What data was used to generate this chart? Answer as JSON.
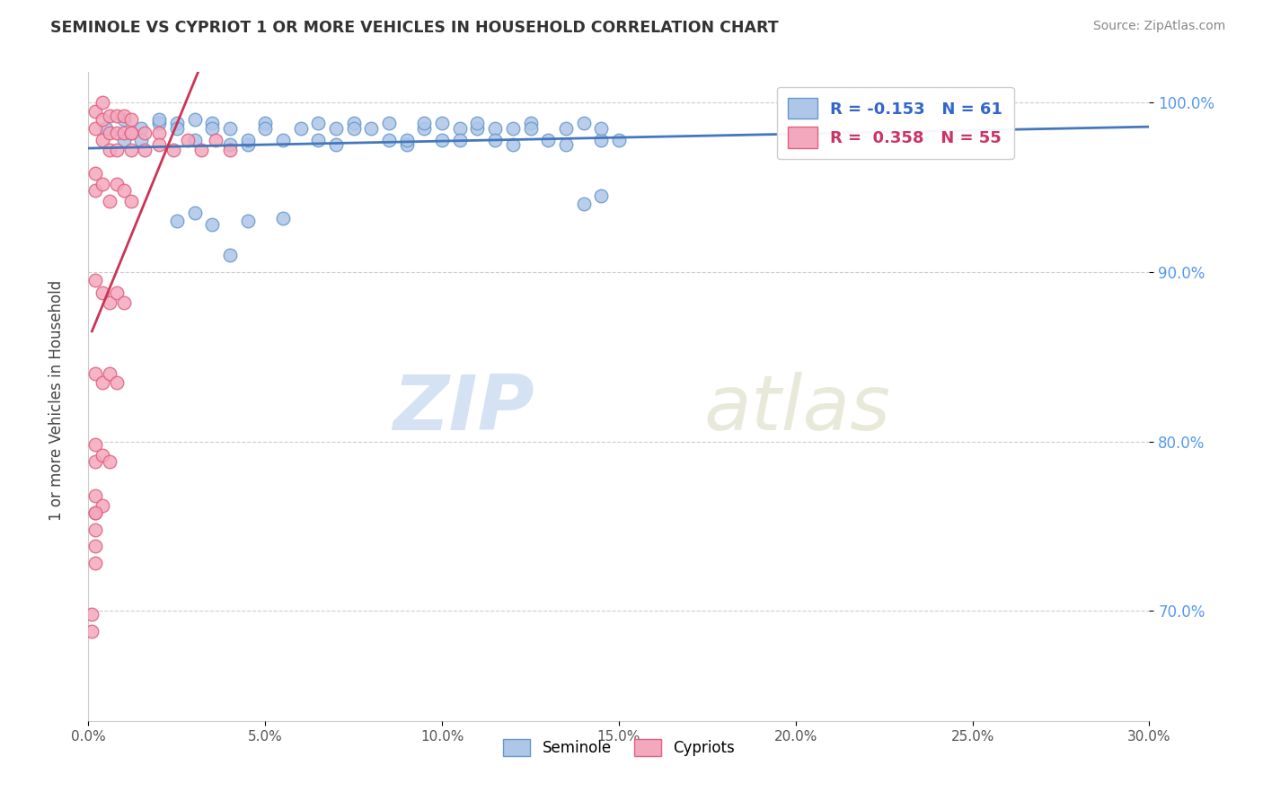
{
  "title": "SEMINOLE VS CYPRIOT 1 OR MORE VEHICLES IN HOUSEHOLD CORRELATION CHART",
  "source": "Source: ZipAtlas.com",
  "ylabel": "1 or more Vehicles in Household",
  "xlim": [
    0.0,
    0.3
  ],
  "ylim": [
    0.635,
    1.018
  ],
  "ytick_labels": [
    "70.0%",
    "80.0%",
    "90.0%",
    "100.0%"
  ],
  "ytick_values": [
    0.7,
    0.8,
    0.9,
    1.0
  ],
  "xtick_labels": [
    "0.0%",
    "5.0%",
    "10.0%",
    "15.0%",
    "20.0%",
    "25.0%",
    "30.0%"
  ],
  "xtick_values": [
    0.0,
    0.05,
    0.1,
    0.15,
    0.2,
    0.25,
    0.3
  ],
  "legend_r_seminole": "-0.153",
  "legend_n_seminole": "61",
  "legend_r_cypriot": "0.358",
  "legend_n_cypriot": "55",
  "seminole_color": "#aec6e8",
  "cypriot_color": "#f4a8be",
  "seminole_edge": "#6699cc",
  "cypriot_edge": "#e06080",
  "trend_seminole_color": "#4477bb",
  "trend_cypriot_color": "#cc3355",
  "watermark_zip": "ZIP",
  "watermark_atlas": "atlas",
  "seminole_x": [
    0.005,
    0.01,
    0.01,
    0.015,
    0.015,
    0.02,
    0.02,
    0.025,
    0.025,
    0.03,
    0.03,
    0.035,
    0.035,
    0.04,
    0.04,
    0.045,
    0.045,
    0.05,
    0.05,
    0.055,
    0.06,
    0.065,
    0.065,
    0.07,
    0.07,
    0.075,
    0.08,
    0.085,
    0.085,
    0.09,
    0.09,
    0.095,
    0.095,
    0.1,
    0.1,
    0.105,
    0.105,
    0.11,
    0.11,
    0.115,
    0.115,
    0.12,
    0.12,
    0.125,
    0.125,
    0.13,
    0.135,
    0.135,
    0.14,
    0.145,
    0.145,
    0.15,
    0.025,
    0.03,
    0.035,
    0.04,
    0.045,
    0.055,
    0.075,
    0.14,
    0.145
  ],
  "seminole_y": [
    0.985,
    0.99,
    0.978,
    0.985,
    0.978,
    0.988,
    0.99,
    0.988,
    0.985,
    0.978,
    0.99,
    0.988,
    0.985,
    0.975,
    0.985,
    0.975,
    0.978,
    0.988,
    0.985,
    0.978,
    0.985,
    0.988,
    0.978,
    0.975,
    0.985,
    0.988,
    0.985,
    0.978,
    0.988,
    0.975,
    0.978,
    0.985,
    0.988,
    0.978,
    0.988,
    0.985,
    0.978,
    0.985,
    0.988,
    0.985,
    0.978,
    0.975,
    0.985,
    0.988,
    0.985,
    0.978,
    0.975,
    0.985,
    0.988,
    0.978,
    0.985,
    0.978,
    0.93,
    0.935,
    0.928,
    0.91,
    0.93,
    0.932,
    0.985,
    0.94,
    0.945
  ],
  "cypriot_x": [
    0.002,
    0.002,
    0.004,
    0.004,
    0.004,
    0.006,
    0.006,
    0.006,
    0.008,
    0.008,
    0.008,
    0.01,
    0.01,
    0.012,
    0.012,
    0.012,
    0.012,
    0.016,
    0.016,
    0.02,
    0.02,
    0.024,
    0.028,
    0.032,
    0.036,
    0.04,
    0.002,
    0.002,
    0.004,
    0.006,
    0.008,
    0.01,
    0.012,
    0.002,
    0.004,
    0.006,
    0.008,
    0.01,
    0.002,
    0.004,
    0.006,
    0.008,
    0.002,
    0.002,
    0.004,
    0.006,
    0.002,
    0.002,
    0.004,
    0.002,
    0.002,
    0.002,
    0.002,
    0.001,
    0.001
  ],
  "cypriot_y": [
    0.995,
    0.985,
    1.0,
    0.99,
    0.978,
    0.992,
    0.982,
    0.972,
    0.992,
    0.982,
    0.972,
    0.992,
    0.982,
    0.99,
    0.982,
    0.972,
    0.982,
    0.982,
    0.972,
    0.982,
    0.975,
    0.972,
    0.978,
    0.972,
    0.978,
    0.972,
    0.958,
    0.948,
    0.952,
    0.942,
    0.952,
    0.948,
    0.942,
    0.895,
    0.888,
    0.882,
    0.888,
    0.882,
    0.84,
    0.835,
    0.84,
    0.835,
    0.798,
    0.788,
    0.792,
    0.788,
    0.768,
    0.758,
    0.762,
    0.758,
    0.748,
    0.738,
    0.728,
    0.698,
    0.688
  ]
}
